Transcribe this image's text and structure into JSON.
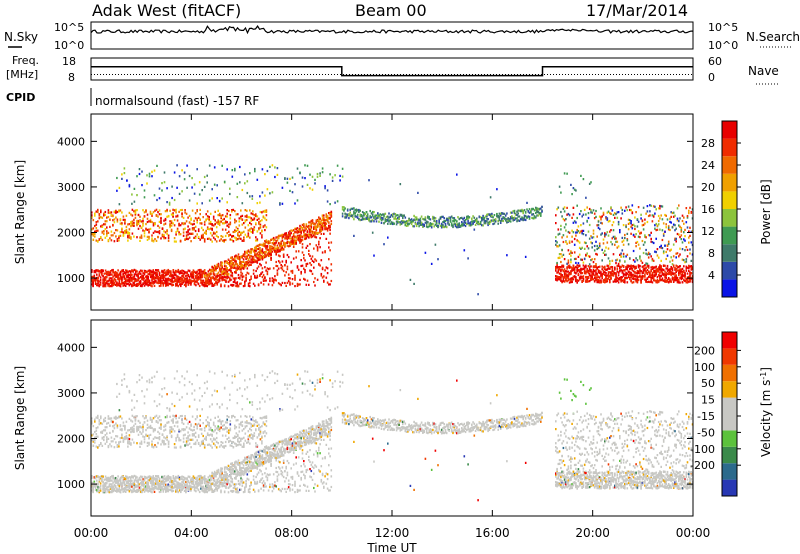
{
  "header": {
    "title": "Adak West (fitACF)",
    "beam": "Beam 00",
    "date": "17/Mar/2014"
  },
  "top_panels": {
    "nsky": {
      "label": "N.Sky",
      "tick_hi": "10^5",
      "tick_lo": "10^0"
    },
    "nsearch": {
      "label": "N.Search",
      "tick_hi": "10^5",
      "tick_lo": "10^0"
    },
    "freq": {
      "label_line1": "Freq.",
      "label_line2": "[MHz]",
      "tick_hi": "18",
      "tick_lo": "8"
    },
    "nave": {
      "label": "Nave",
      "tick_hi": "60",
      "tick_lo": "0"
    },
    "cpid": {
      "label": "CPID",
      "value": "normalsound (fast) -157 RF"
    }
  },
  "axes": {
    "ylabel": "Slant Range [km]",
    "y_ticks": [
      "1000",
      "2000",
      "3000",
      "4000"
    ],
    "x_ticks": [
      "00:00",
      "04:00",
      "08:00",
      "12:00",
      "16:00",
      "20:00",
      "00:00"
    ],
    "xlabel": "Time UT"
  },
  "colorbars": {
    "power": {
      "label": "Power [dB]",
      "ticks": [
        "4",
        "8",
        "12",
        "16",
        "20",
        "24",
        "28"
      ],
      "colors": [
        "#0a14e6",
        "#2d4aa8",
        "#3f7a6a",
        "#3f9a52",
        "#8cc43c",
        "#f0d000",
        "#f0a000",
        "#f06a00",
        "#f02c00",
        "#e80000"
      ]
    },
    "velocity": {
      "label": "Velocity [m s^-1]",
      "ticks": [
        "200",
        "100",
        "50",
        "15",
        "-15",
        "-50",
        "-100",
        "-200"
      ],
      "colors": [
        "#2838b4",
        "#2c6a8c",
        "#3a8a4a",
        "#5cc23c",
        "#c8c8c4",
        "#c8c8c4",
        "#f0a800",
        "#f07000",
        "#f03800",
        "#f00000"
      ]
    }
  },
  "chart_data": {
    "type": "heatmap",
    "x_range_hours": [
      0,
      24
    ],
    "y_range_km": [
      300,
      4600
    ],
    "freq_schedule_mhz": [
      {
        "start": "00:00",
        "end": "10:00",
        "value": 14
      },
      {
        "start": "10:00",
        "end": "18:00",
        "value": 10
      },
      {
        "start": "18:00",
        "end": "24:00",
        "value": 14
      }
    ],
    "nave_schedule": [
      {
        "start": "00:00",
        "end": "24:00",
        "value": 15
      }
    ],
    "power_regions": [
      {
        "t0": 0.0,
        "t1": 4.5,
        "r_center": 1000,
        "r_width": 250,
        "level": "high"
      },
      {
        "t0": 4.5,
        "t1": 9.5,
        "r_center_start": 1000,
        "r_center_end": 2300,
        "level": "high"
      },
      {
        "t0": 0.0,
        "t1": 7.0,
        "r_center": 2000,
        "r_width": 400,
        "level": "high"
      },
      {
        "t0": 10.0,
        "t1": 18.0,
        "r_center": 2450,
        "r_width": 250,
        "level": "mid"
      },
      {
        "t0": 18.5,
        "t1": 24.0,
        "r_center": 1100,
        "r_width": 300,
        "level": "high"
      },
      {
        "t0": 18.5,
        "t1": 24.0,
        "r_center": 2100,
        "r_width": 500,
        "level": "mixed"
      }
    ],
    "velocity_dominant_ms": [
      -15,
      15
    ]
  }
}
